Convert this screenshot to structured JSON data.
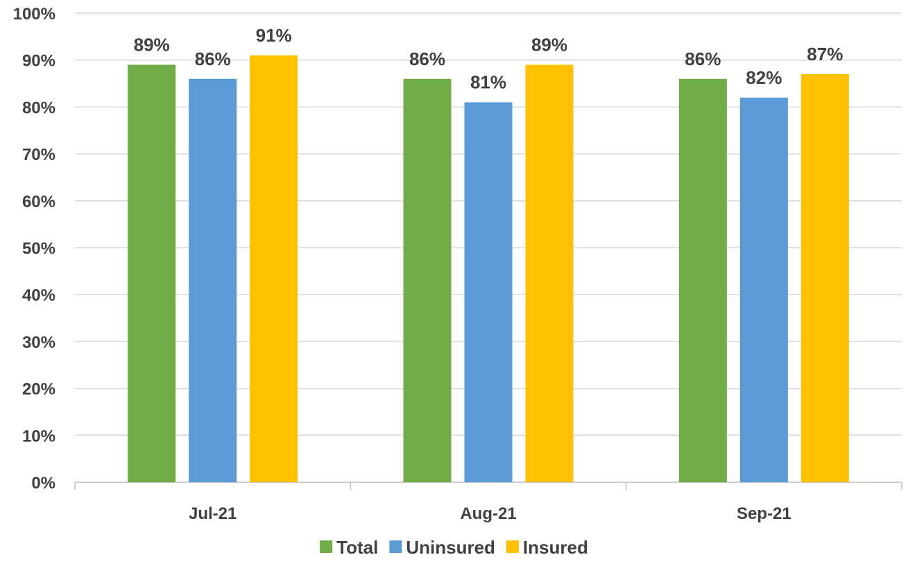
{
  "chart_data": {
    "type": "bar",
    "categories": [
      "Jul-21",
      "Aug-21",
      "Sep-21"
    ],
    "series": [
      {
        "name": "Total",
        "color": "#70ad47",
        "values": [
          89,
          86,
          86
        ],
        "labels": [
          "89%",
          "86%",
          "86%"
        ]
      },
      {
        "name": "Uninsured",
        "color": "#5b9bd5",
        "values": [
          86,
          81,
          82
        ],
        "labels": [
          "86%",
          "81%",
          "82%"
        ]
      },
      {
        "name": "Insured",
        "color": "#ffc000",
        "values": [
          91,
          89,
          87
        ],
        "labels": [
          "91%",
          "89%",
          "87%"
        ]
      }
    ],
    "ylim": [
      0,
      100
    ],
    "yticks": [
      0,
      10,
      20,
      30,
      40,
      50,
      60,
      70,
      80,
      90,
      100
    ],
    "ytick_labels": [
      "0%",
      "10%",
      "20%",
      "30%",
      "40%",
      "50%",
      "60%",
      "70%",
      "80%",
      "90%",
      "100%"
    ],
    "grid": true,
    "legend": "bottom"
  }
}
